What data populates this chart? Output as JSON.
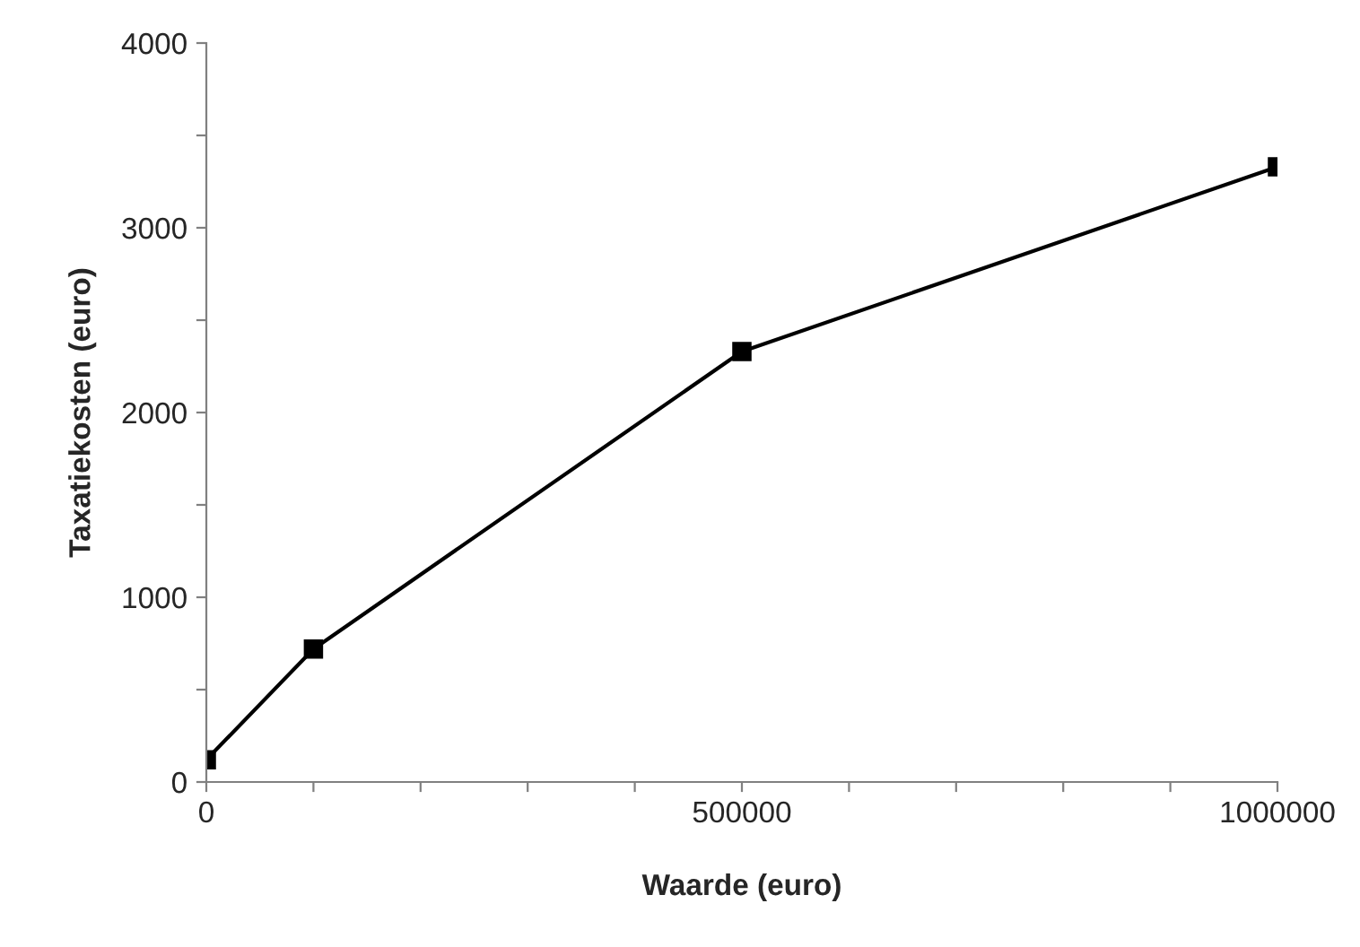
{
  "chart_data": {
    "type": "line",
    "xlabel": "Waarde (euro)",
    "ylabel": "Taxatiekosten (euro)",
    "x": [
      0,
      100000,
      500000,
      1000000
    ],
    "series": [
      {
        "color": "#000000",
        "values": [
          120,
          720,
          2330,
          3330
        ]
      }
    ],
    "xlim": [
      0,
      1000000
    ],
    "xticks": [
      0,
      {
        "value": 100000,
        "label": null
      },
      {
        "value": 200000,
        "label": null
      },
      {
        "value": 300000,
        "label": null
      },
      {
        "value": 400000,
        "label": null
      },
      500000,
      {
        "value": 600000,
        "label": null
      },
      {
        "value": 700000,
        "label": null
      },
      {
        "value": 800000,
        "label": null
      },
      {
        "value": 900000,
        "label": null
      },
      1000000
    ],
    "ylim": [
      0,
      4000
    ],
    "yticks": [
      0,
      {
        "value": 500,
        "label": null
      },
      1000,
      {
        "value": 1500,
        "label": null
      },
      2000,
      {
        "value": 2500,
        "label": null
      },
      3000,
      {
        "value": 3500,
        "label": null
      },
      4000
    ],
    "grid": false,
    "legend": false,
    "marker": "square",
    "line_style": "solid"
  }
}
